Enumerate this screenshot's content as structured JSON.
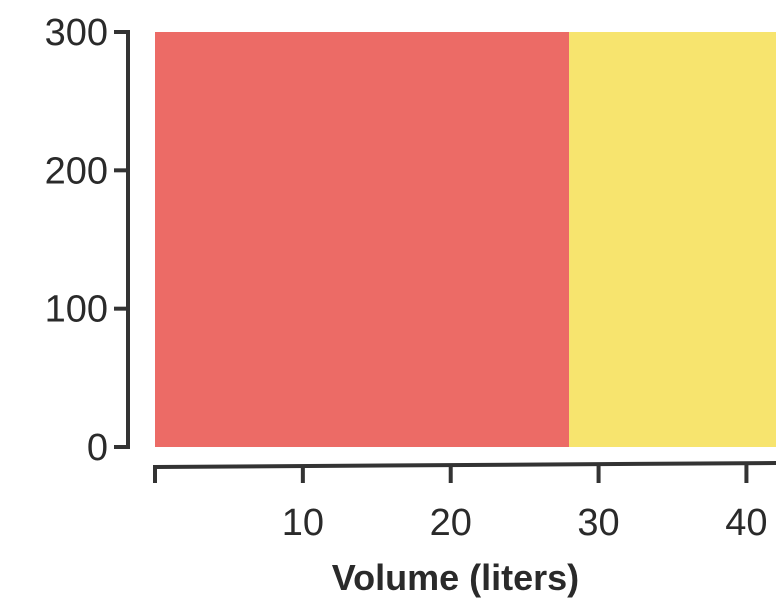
{
  "chart_data": {
    "type": "area",
    "title": "",
    "xlabel": "Volume (liters)",
    "ylabel": "",
    "xlim": [
      0,
      42
    ],
    "ylim": [
      0,
      300
    ],
    "x_ticks": [
      0,
      10,
      20,
      30,
      40
    ],
    "x_tick_labels": [
      "",
      "10",
      "20",
      "30",
      "40"
    ],
    "y_ticks": [
      0,
      100,
      200,
      300
    ],
    "y_tick_labels": [
      "0",
      "100",
      "200",
      "300"
    ],
    "grid": false,
    "legend": "none",
    "regions": [
      {
        "x_start": 0,
        "x_end": 28,
        "y_start": 0,
        "y_end": 300,
        "color": "#ec6b66"
      },
      {
        "x_start": 28,
        "x_end": 42,
        "y_start": 0,
        "y_end": 300,
        "color": "#f7e46e"
      }
    ]
  }
}
